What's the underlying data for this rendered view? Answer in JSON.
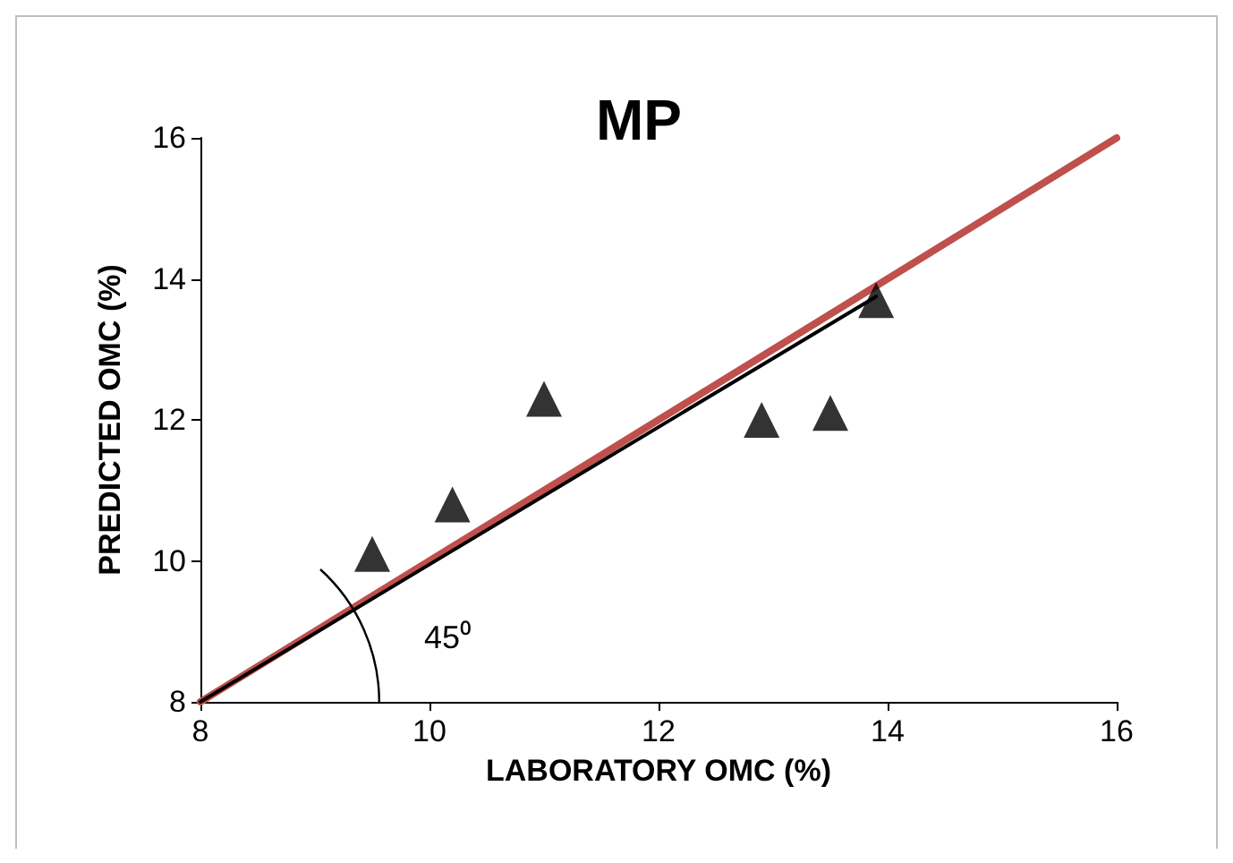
{
  "chart_data": {
    "type": "scatter",
    "title": "MP",
    "xlabel": "LABORATORY OMC (%)",
    "ylabel": "PREDICTED OMC (%)",
    "xlim": [
      8,
      16
    ],
    "xticks": [
      8,
      10,
      12,
      14,
      16
    ],
    "ylim": [
      8,
      16
    ],
    "yticks": [
      8,
      10,
      12,
      14,
      16
    ],
    "grid": false,
    "marker": "triangle",
    "annotations": [
      "45⁰"
    ],
    "series": [
      {
        "type": "line",
        "color": "#c0504d",
        "x": [
          8,
          16
        ],
        "values": [
          8,
          16
        ],
        "marker": "none",
        "line_style": "solid"
      },
      {
        "type": "line",
        "color": "#000000",
        "x": [
          8,
          13.9
        ],
        "values": [
          8,
          13.75
        ],
        "marker": "none",
        "line_style": "solid"
      },
      {
        "color": "#000000",
        "x": [
          9.5,
          10.2,
          11.0,
          12.9,
          13.5,
          13.9
        ],
        "values": [
          10.1,
          10.8,
          12.3,
          12.0,
          12.1,
          13.7
        ]
      }
    ]
  }
}
